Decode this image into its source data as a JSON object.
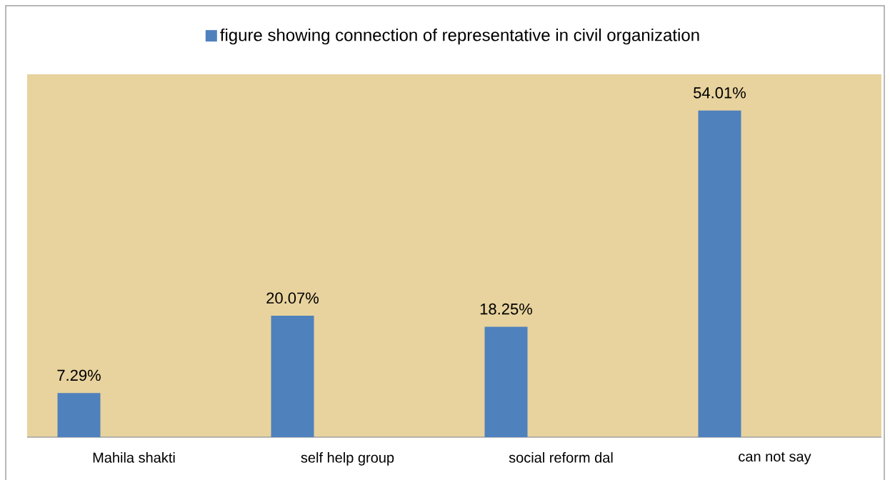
{
  "chart_data": {
    "type": "bar",
    "categories": [
      "Mahila shakti",
      "self help group",
      "social reform dal",
      "can not say"
    ],
    "series": [
      {
        "name": "figure showing connection of representative in civil organization",
        "color": "#4f81bd",
        "values": [
          7.29,
          20.07,
          18.25,
          54.01
        ],
        "value_labels": [
          "7.29%",
          "20.07%",
          "18.25%",
          "54.01%"
        ]
      }
    ],
    "ylim": [
      0,
      60
    ],
    "tick_labels": "x",
    "legend": "top"
  }
}
